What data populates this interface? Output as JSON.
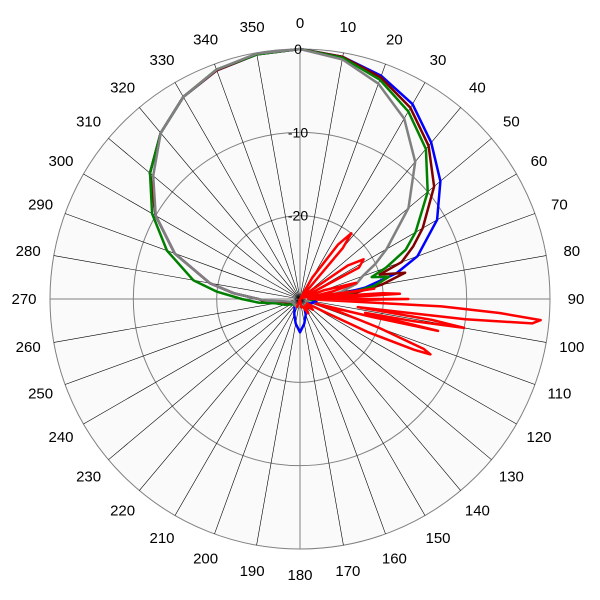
{
  "chart_data": {
    "type": "polar-line",
    "title": "",
    "angle_tick_labels": [
      "0",
      "10",
      "20",
      "30",
      "40",
      "50",
      "60",
      "70",
      "80",
      "90",
      "100",
      "110",
      "120",
      "130",
      "140",
      "150",
      "160",
      "170",
      "180",
      "190",
      "200",
      "210",
      "220",
      "230",
      "240",
      "250",
      "260",
      "270",
      "280",
      "290",
      "300",
      "310",
      "320",
      "330",
      "340",
      "350"
    ],
    "radial_tick_labels": [
      "0",
      "-10",
      "-20"
    ],
    "r_range": [
      -30,
      0
    ],
    "angle_direction": "clockwise",
    "zero_angle": "top",
    "grid": true,
    "legend": "none",
    "series": [
      {
        "color": "#0000ff",
        "points": [
          [
            0,
            0
          ],
          [
            10,
            -0.5
          ],
          [
            20,
            -1.5
          ],
          [
            30,
            -3
          ],
          [
            40,
            -5.5
          ],
          [
            50,
            -8
          ],
          [
            60,
            -11
          ],
          [
            70,
            -15
          ],
          [
            75,
            -18
          ],
          [
            80,
            -22
          ],
          [
            85,
            -26
          ],
          [
            90,
            -29
          ],
          [
            100,
            -28
          ],
          [
            130,
            -29
          ],
          [
            150,
            -29
          ],
          [
            160,
            -28
          ],
          [
            170,
            -27
          ],
          [
            180,
            -26
          ],
          [
            190,
            -27
          ],
          [
            200,
            -28
          ],
          [
            220,
            -29
          ],
          [
            245,
            -29
          ],
          [
            260,
            -28
          ],
          [
            265,
            -26
          ],
          [
            270,
            -25
          ],
          [
            275,
            -22
          ],
          [
            280,
            -19
          ],
          [
            290,
            -14
          ],
          [
            300,
            -10
          ],
          [
            310,
            -6.5
          ],
          [
            320,
            -4
          ],
          [
            330,
            -2
          ],
          [
            340,
            -0.8
          ],
          [
            350,
            -0.2
          ],
          [
            360,
            0
          ]
        ]
      },
      {
        "color": "#800000",
        "points": [
          [
            0,
            0
          ],
          [
            10,
            -0.5
          ],
          [
            20,
            -1.7
          ],
          [
            30,
            -3.5
          ],
          [
            40,
            -6
          ],
          [
            50,
            -9
          ],
          [
            60,
            -13
          ],
          [
            65,
            -15
          ],
          [
            70,
            -17
          ],
          [
            73,
            -20
          ],
          [
            76,
            -17
          ],
          [
            80,
            -20
          ],
          [
            85,
            -24
          ],
          [
            90,
            -28
          ],
          [
            100,
            -29
          ],
          [
            130,
            -29
          ],
          [
            160,
            -29
          ],
          [
            180,
            -29
          ],
          [
            200,
            -29
          ],
          [
            230,
            -29
          ],
          [
            260,
            -28
          ],
          [
            265,
            -26
          ],
          [
            270,
            -25
          ],
          [
            275,
            -22
          ],
          [
            280,
            -19
          ],
          [
            290,
            -14
          ],
          [
            300,
            -10
          ],
          [
            310,
            -6.5
          ],
          [
            320,
            -4
          ],
          [
            330,
            -2
          ],
          [
            340,
            -0.8
          ],
          [
            350,
            -0.2
          ],
          [
            360,
            0
          ]
        ]
      },
      {
        "color": "#008000",
        "points": [
          [
            0,
            0
          ],
          [
            10,
            -0.6
          ],
          [
            20,
            -2
          ],
          [
            30,
            -4
          ],
          [
            40,
            -6.5
          ],
          [
            50,
            -10
          ],
          [
            60,
            -14
          ],
          [
            65,
            -16
          ],
          [
            70,
            -19
          ],
          [
            73,
            -21
          ],
          [
            76,
            -19
          ],
          [
            80,
            -21
          ],
          [
            85,
            -25
          ],
          [
            90,
            -28
          ],
          [
            100,
            -29
          ],
          [
            130,
            -29
          ],
          [
            160,
            -29
          ],
          [
            180,
            -29
          ],
          [
            200,
            -29
          ],
          [
            230,
            -29
          ],
          [
            250,
            -28
          ],
          [
            260,
            -27
          ],
          [
            265,
            -25
          ],
          [
            270,
            -23
          ],
          [
            275,
            -20
          ],
          [
            280,
            -17
          ],
          [
            290,
            -13
          ],
          [
            300,
            -9.5
          ],
          [
            310,
            -6.5
          ],
          [
            320,
            -4
          ],
          [
            330,
            -2
          ],
          [
            340,
            -0.7
          ],
          [
            350,
            -0.2
          ],
          [
            360,
            0
          ]
        ]
      },
      {
        "color": "#808080",
        "points": [
          [
            0,
            0
          ],
          [
            10,
            -0.8
          ],
          [
            20,
            -2.5
          ],
          [
            30,
            -5
          ],
          [
            40,
            -8.5
          ],
          [
            50,
            -13
          ],
          [
            60,
            -18
          ],
          [
            65,
            -20
          ],
          [
            70,
            -22
          ],
          [
            75,
            -23
          ],
          [
            80,
            -25
          ],
          [
            85,
            -27
          ],
          [
            90,
            -29
          ],
          [
            100,
            -29
          ],
          [
            150,
            -29
          ],
          [
            180,
            -29
          ],
          [
            210,
            -29
          ],
          [
            250,
            -29
          ],
          [
            262,
            -28
          ],
          [
            267,
            -26
          ],
          [
            270,
            -25
          ],
          [
            275,
            -22
          ],
          [
            280,
            -19
          ],
          [
            290,
            -14
          ],
          [
            300,
            -10
          ],
          [
            310,
            -7
          ],
          [
            320,
            -4
          ],
          [
            330,
            -2
          ],
          [
            340,
            -0.7
          ],
          [
            350,
            -0.1
          ],
          [
            360,
            0
          ]
        ]
      },
      {
        "color": "#ff0000",
        "points": [
          [
            0,
            -30
          ],
          [
            20,
            -30
          ],
          [
            30,
            -27
          ],
          [
            35,
            -22
          ],
          [
            38,
            -20
          ],
          [
            40,
            -22
          ],
          [
            43,
            -30
          ],
          [
            50,
            -29
          ],
          [
            55,
            -23
          ],
          [
            58,
            -21
          ],
          [
            62,
            -22
          ],
          [
            66,
            -30
          ],
          [
            70,
            -27
          ],
          [
            74,
            -23
          ],
          [
            77,
            -26
          ],
          [
            80,
            -29
          ],
          [
            82,
            -21
          ],
          [
            84,
            -28
          ],
          [
            86,
            -20
          ],
          [
            87,
            -18
          ],
          [
            88,
            -25
          ],
          [
            89,
            -29
          ],
          [
            90,
            -17
          ],
          [
            91,
            -23
          ],
          [
            92,
            -28
          ],
          [
            93,
            -13
          ],
          [
            94,
            -6
          ],
          [
            95,
            -1
          ],
          [
            96,
            -2
          ],
          [
            97,
            -10
          ],
          [
            98,
            -23
          ],
          [
            99,
            -14
          ],
          [
            100,
            -10
          ],
          [
            101,
            -16
          ],
          [
            102,
            -22
          ],
          [
            103,
            -13
          ],
          [
            104,
            -21
          ],
          [
            106,
            -28
          ],
          [
            108,
            -25
          ],
          [
            110,
            -20
          ],
          [
            112,
            -14
          ],
          [
            113,
            -13
          ],
          [
            114,
            -15
          ],
          [
            116,
            -21
          ],
          [
            118,
            -27
          ],
          [
            122,
            -29
          ],
          [
            130,
            -28
          ],
          [
            140,
            -29
          ],
          [
            150,
            -28
          ],
          [
            160,
            -29
          ],
          [
            170,
            -29
          ],
          [
            180,
            -30
          ],
          [
            190,
            -30
          ],
          [
            200,
            -29
          ],
          [
            210,
            -30
          ],
          [
            230,
            -30
          ],
          [
            270,
            -30
          ],
          [
            300,
            -30
          ],
          [
            330,
            -30
          ],
          [
            360,
            -30
          ]
        ]
      }
    ]
  }
}
